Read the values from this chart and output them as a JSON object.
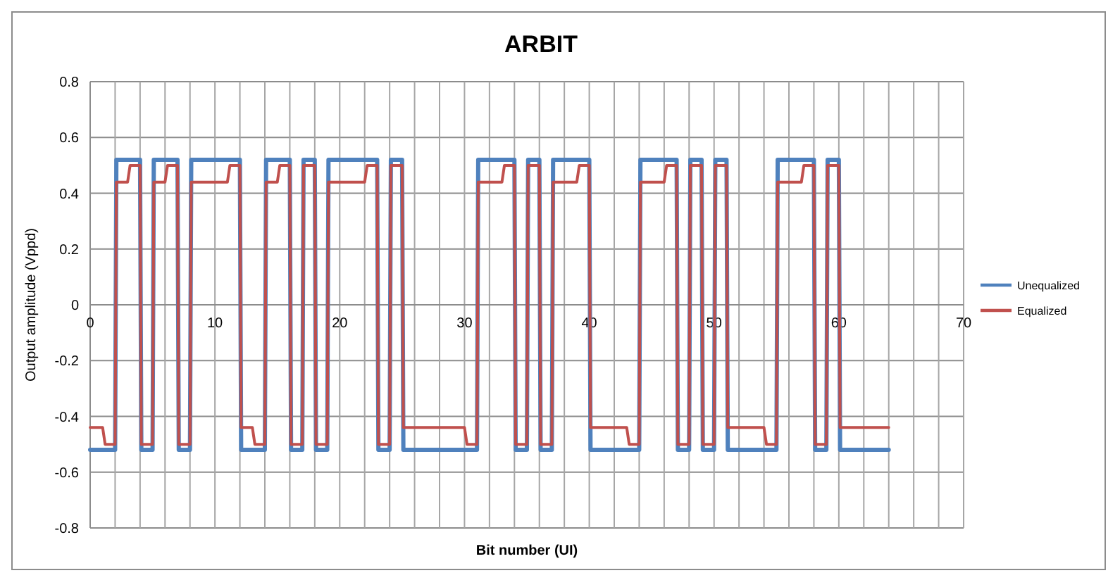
{
  "chart_data": {
    "type": "line",
    "title": "ARBIT",
    "xlabel": "Bit number (UI)",
    "ylabel": "Output amplitude (Vppd)",
    "xlim": [
      0,
      70
    ],
    "xticks": [
      0,
      {
        "value": 2,
        "label": null
      },
      {
        "value": 4,
        "label": null
      },
      {
        "value": 6,
        "label": null
      },
      {
        "value": 8,
        "label": null
      },
      10,
      {
        "value": 12,
        "label": null
      },
      {
        "value": 14,
        "label": null
      },
      {
        "value": 16,
        "label": null
      },
      {
        "value": 18,
        "label": null
      },
      20,
      {
        "value": 22,
        "label": null
      },
      {
        "value": 24,
        "label": null
      },
      {
        "value": 26,
        "label": null
      },
      {
        "value": 28,
        "label": null
      },
      30,
      {
        "value": 32,
        "label": null
      },
      {
        "value": 34,
        "label": null
      },
      {
        "value": 36,
        "label": null
      },
      {
        "value": 38,
        "label": null
      },
      40,
      {
        "value": 42,
        "label": null
      },
      {
        "value": 44,
        "label": null
      },
      {
        "value": 46,
        "label": null
      },
      {
        "value": 48,
        "label": null
      },
      50,
      {
        "value": 52,
        "label": null
      },
      {
        "value": 54,
        "label": null
      },
      {
        "value": 56,
        "label": null
      },
      {
        "value": 58,
        "label": null
      },
      60,
      {
        "value": 62,
        "label": null
      },
      {
        "value": 64,
        "label": null
      },
      {
        "value": 66,
        "label": null
      },
      {
        "value": 68,
        "label": null
      },
      70
    ],
    "ylim": [
      -0.8,
      0.8
    ],
    "yticks": [
      -0.8,
      -0.6,
      -0.4,
      -0.2,
      0,
      0.2,
      0.4,
      0.6,
      0.8
    ],
    "grid": true,
    "legend": "right",
    "marker": "none",
    "line_style": "solid",
    "series": [
      {
        "name": "Unequalized",
        "color": "#4f81bd",
        "x": [
          0,
          2,
          2.1,
          4,
          4.1,
          5,
          5.1,
          7,
          7.1,
          8,
          8.1,
          12,
          12.1,
          14,
          14.1,
          16,
          16.1,
          17,
          17.1,
          18,
          18.1,
          19,
          19.1,
          23,
          23.1,
          24,
          24.1,
          25,
          25.1,
          31,
          31.1,
          34,
          34.1,
          35,
          35.1,
          36,
          36.1,
          37,
          37.1,
          40,
          40.1,
          44,
          44.1,
          47,
          47.1,
          48,
          48.1,
          49,
          49.1,
          50,
          50.1,
          51,
          51.1,
          55,
          55.1,
          58,
          58.1,
          59,
          59.1,
          60,
          60.1,
          64
        ],
        "values": [
          -0.52,
          -0.52,
          0.52,
          0.52,
          -0.52,
          -0.52,
          0.52,
          0.52,
          -0.52,
          -0.52,
          0.52,
          0.52,
          -0.52,
          -0.52,
          0.52,
          0.52,
          -0.52,
          -0.52,
          0.52,
          0.52,
          -0.52,
          -0.52,
          0.52,
          0.52,
          -0.52,
          -0.52,
          0.52,
          0.52,
          -0.52,
          -0.52,
          0.52,
          0.52,
          -0.52,
          -0.52,
          0.52,
          0.52,
          -0.52,
          -0.52,
          0.52,
          0.52,
          -0.52,
          -0.52,
          0.52,
          0.52,
          -0.52,
          -0.52,
          0.52,
          0.52,
          -0.52,
          -0.52,
          0.52,
          0.52,
          -0.52,
          -0.52,
          0.52,
          0.52,
          -0.52,
          -0.52,
          0.52,
          0.52,
          -0.52,
          -0.52
        ]
      },
      {
        "name": "Equalized",
        "color": "#c0504d",
        "x": [
          0,
          1,
          1.2,
          2,
          2.1,
          3,
          3.2,
          4,
          4.1,
          5,
          5.1,
          6,
          6.2,
          7,
          7.1,
          8,
          8.1,
          11,
          11.2,
          12,
          12.1,
          13,
          13.2,
          14,
          14.1,
          15,
          15.2,
          16,
          16.1,
          17,
          17.1,
          18,
          18.1,
          19,
          19.1,
          22,
          22.2,
          23,
          23.1,
          24,
          24.1,
          25,
          25.1,
          30,
          30.2,
          31,
          31.1,
          33,
          33.2,
          34,
          34.1,
          35,
          35.1,
          36,
          36.1,
          37,
          37.1,
          39,
          39.2,
          40,
          40.1,
          43,
          43.2,
          44,
          44.1,
          46,
          46.2,
          47,
          47.1,
          48,
          48.1,
          49,
          49.1,
          50,
          50.1,
          51,
          51.1,
          54,
          54.2,
          55,
          55.1,
          57,
          57.2,
          58,
          58.1,
          59,
          59.1,
          60,
          60.1,
          64
        ],
        "values": [
          -0.44,
          -0.44,
          -0.5,
          -0.5,
          0.44,
          0.44,
          0.5,
          0.5,
          -0.5,
          -0.5,
          0.44,
          0.44,
          0.5,
          0.5,
          -0.5,
          -0.5,
          0.44,
          0.44,
          0.5,
          0.5,
          -0.44,
          -0.44,
          -0.5,
          -0.5,
          0.44,
          0.44,
          0.5,
          0.5,
          -0.5,
          -0.5,
          0.5,
          0.5,
          -0.5,
          -0.5,
          0.44,
          0.44,
          0.5,
          0.5,
          -0.5,
          -0.5,
          0.5,
          0.5,
          -0.44,
          -0.44,
          -0.5,
          -0.5,
          0.44,
          0.44,
          0.5,
          0.5,
          -0.5,
          -0.5,
          0.5,
          0.5,
          -0.5,
          -0.5,
          0.44,
          0.44,
          0.5,
          0.5,
          -0.44,
          -0.44,
          -0.5,
          -0.5,
          0.44,
          0.44,
          0.5,
          0.5,
          -0.5,
          -0.5,
          0.5,
          0.5,
          -0.5,
          -0.5,
          0.5,
          0.5,
          -0.44,
          -0.44,
          -0.5,
          -0.5,
          0.44,
          0.44,
          0.5,
          0.5,
          -0.5,
          -0.5,
          0.5,
          0.5,
          -0.44,
          -0.44
        ]
      }
    ]
  }
}
